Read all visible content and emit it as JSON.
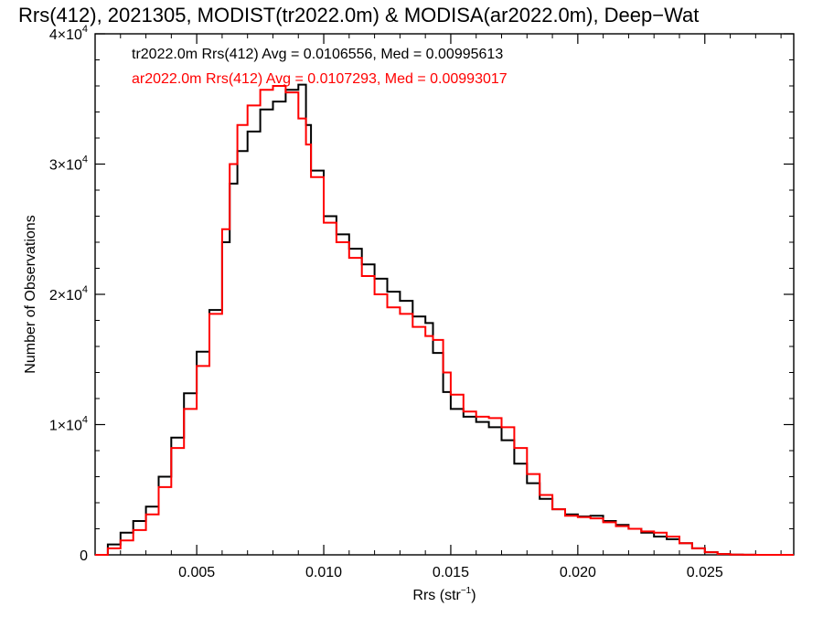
{
  "chart_data": {
    "type": "line",
    "step": true,
    "title": "Rrs(412), 2021305, MODIST(tr2022.0m) & MODISA(ar2022.0m), Deep−Wat",
    "xlabel_base": "Rrs (str",
    "xlabel_sup": "−1",
    "xlabel_end": ")",
    "ylabel": "Number of Observations",
    "xlim": [
      0.001,
      0.0285
    ],
    "ylim": [
      0,
      40000
    ],
    "xticks": [
      {
        "value": 0.005,
        "label": "0.005"
      },
      {
        "value": 0.01,
        "label": "0.010"
      },
      {
        "value": 0.015,
        "label": "0.015"
      },
      {
        "value": 0.02,
        "label": "0.020"
      },
      {
        "value": 0.025,
        "label": "0.025"
      }
    ],
    "yticks": [
      {
        "value": 0,
        "label": "0",
        "exp": ""
      },
      {
        "value": 10000,
        "label": "1×10",
        "exp": "4"
      },
      {
        "value": 20000,
        "label": "2×10",
        "exp": "4"
      },
      {
        "value": 30000,
        "label": "3×10",
        "exp": "4"
      },
      {
        "value": 40000,
        "label": "4×10",
        "exp": "4"
      }
    ],
    "grid": false,
    "series": [
      {
        "name": "tr2022.0m Rrs(412) Avg = 0.0106556, Med = 0.00995613",
        "color": "#000000",
        "x": [
          0.001,
          0.0015,
          0.002,
          0.0025,
          0.003,
          0.0035,
          0.004,
          0.0045,
          0.005,
          0.0055,
          0.006,
          0.0063,
          0.0066,
          0.007,
          0.0075,
          0.008,
          0.0085,
          0.009,
          0.0093,
          0.0095,
          0.01,
          0.0105,
          0.011,
          0.0115,
          0.012,
          0.0125,
          0.013,
          0.0135,
          0.014,
          0.0143,
          0.0147,
          0.015,
          0.0155,
          0.016,
          0.0165,
          0.017,
          0.0175,
          0.018,
          0.0185,
          0.019,
          0.0195,
          0.02,
          0.0205,
          0.021,
          0.0215,
          0.022,
          0.0225,
          0.023,
          0.0235,
          0.024,
          0.0245,
          0.025,
          0.0255,
          0.026,
          0.0265,
          0.027,
          0.0275,
          0.0285
        ],
        "y": [
          0,
          800,
          1700,
          2600,
          3700,
          6000,
          9000,
          12400,
          15600,
          18800,
          24000,
          28500,
          31000,
          32500,
          34200,
          34800,
          35700,
          36100,
          33000,
          29500,
          26000,
          24600,
          23500,
          22300,
          21200,
          20200,
          19500,
          18300,
          17800,
          15500,
          12500,
          11200,
          10600,
          10200,
          9800,
          8800,
          7000,
          5500,
          4300,
          3500,
          3100,
          2950,
          3000,
          2600,
          2300,
          2000,
          1700,
          1400,
          1200,
          900,
          500,
          200,
          60,
          20,
          5,
          0,
          0,
          0
        ]
      },
      {
        "name": "ar2022.0m Rrs(412) Avg = 0.0107293, Med = 0.00993017",
        "color": "#ff0000",
        "x": [
          0.001,
          0.0015,
          0.002,
          0.0025,
          0.003,
          0.0035,
          0.004,
          0.0045,
          0.005,
          0.0055,
          0.006,
          0.0063,
          0.0066,
          0.007,
          0.0075,
          0.008,
          0.0085,
          0.009,
          0.0093,
          0.0095,
          0.01,
          0.0105,
          0.011,
          0.0115,
          0.012,
          0.0125,
          0.013,
          0.0135,
          0.014,
          0.0143,
          0.0147,
          0.015,
          0.0155,
          0.016,
          0.0165,
          0.017,
          0.0175,
          0.018,
          0.0185,
          0.019,
          0.0195,
          0.02,
          0.0205,
          0.021,
          0.0215,
          0.022,
          0.0225,
          0.023,
          0.0235,
          0.024,
          0.0245,
          0.025,
          0.0255,
          0.026,
          0.0265,
          0.027,
          0.0275,
          0.0285
        ],
        "y": [
          0,
          500,
          1100,
          1900,
          3100,
          5200,
          8200,
          11200,
          14500,
          18500,
          25000,
          30000,
          33000,
          34500,
          35700,
          36000,
          35500,
          33500,
          31500,
          29000,
          25500,
          24000,
          22800,
          21400,
          20000,
          19000,
          18500,
          17500,
          16800,
          16500,
          14000,
          12300,
          11000,
          10600,
          10500,
          9800,
          8200,
          6200,
          4600,
          3500,
          3000,
          2900,
          2800,
          2500,
          2200,
          2000,
          1800,
          1700,
          1400,
          900,
          500,
          200,
          60,
          20,
          5,
          0,
          0,
          0
        ]
      }
    ]
  }
}
